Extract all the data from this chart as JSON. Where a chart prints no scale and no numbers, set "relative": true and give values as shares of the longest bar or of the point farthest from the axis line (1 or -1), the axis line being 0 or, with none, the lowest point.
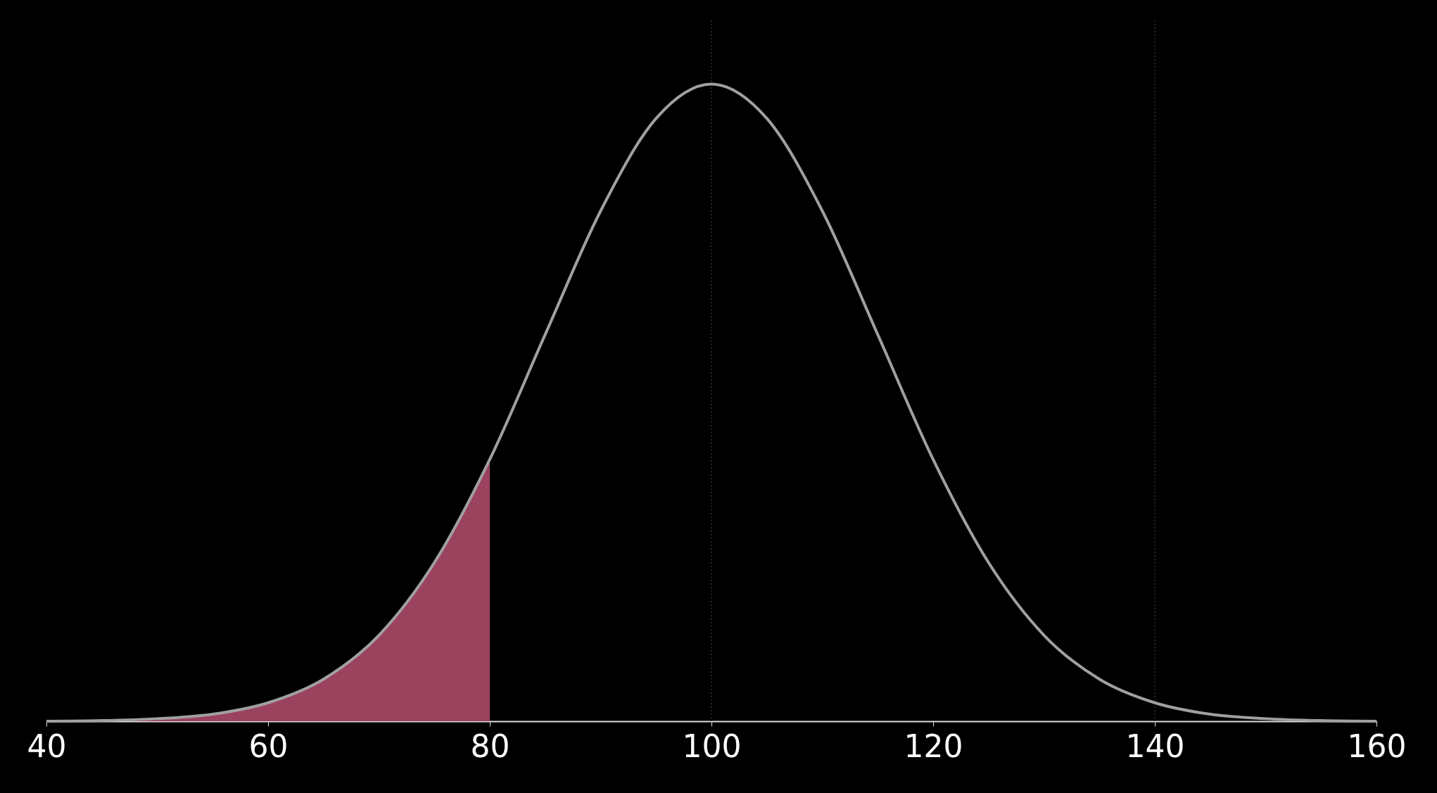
{
  "chart_data": {
    "type": "line",
    "relative": true,
    "x": [
      40,
      45,
      50,
      55,
      60,
      65,
      70,
      75,
      80,
      85,
      90,
      95,
      100,
      105,
      110,
      115,
      120,
      125,
      130,
      135,
      140,
      145,
      150,
      155,
      160
    ],
    "series": [
      {
        "type": "area",
        "color": "#9b425e",
        "x": [
          40,
          45,
          50,
          55,
          60,
          65,
          70,
          75,
          80
        ],
        "values": [
          0,
          0.001,
          0.004,
          0.011,
          0.029,
          0.066,
          0.135,
          0.249,
          0.411
        ]
      },
      {
        "color": "#a0a0a0",
        "values": [
          0,
          0.001,
          0.004,
          0.011,
          0.029,
          0.066,
          0.135,
          0.249,
          0.411,
          0.607,
          0.801,
          0.946,
          1,
          0.946,
          0.801,
          0.607,
          0.411,
          0.249,
          0.135,
          0.066,
          0.029,
          0.011,
          0.004,
          0.001,
          0
        ]
      }
    ],
    "xlim": [
      40,
      160
    ],
    "xticks": [
      40,
      60,
      80,
      100,
      120,
      140,
      160
    ],
    "ref_lines": [
      {
        "axis": "x",
        "value": 100,
        "color": "#333333",
        "line_style": "dotted"
      },
      {
        "axis": "x",
        "value": 140,
        "color": "#333333",
        "line_style": "dotted"
      }
    ],
    "line_style": "solid",
    "marker": "none",
    "grid": false
  }
}
